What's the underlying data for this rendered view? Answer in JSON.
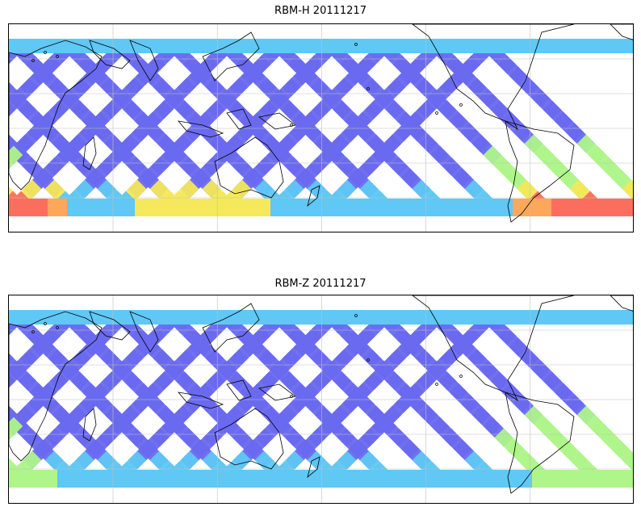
{
  "panels": [
    {
      "title": "RBM-H 20111217",
      "variant": "H"
    },
    {
      "title": "RBM-Z 20111217",
      "variant": "Z"
    }
  ],
  "colors": {
    "swath_base": "#6a6af0",
    "swath_mid": "#5fc8f5",
    "swath_high_green": "#aef58a",
    "swath_high_yellow": "#f5e85a",
    "swath_high_orange": "#fca75a",
    "swath_high_red": "#fb6e5e",
    "coastline": "#000000",
    "grid": "#bfbfbf"
  }
}
